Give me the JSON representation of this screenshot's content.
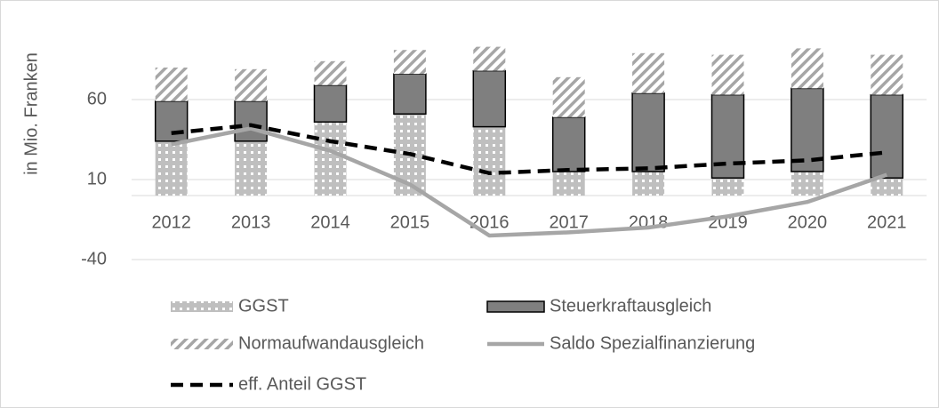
{
  "chart_data": {
    "type": "bar",
    "y_label": "in Mio. Franken",
    "categories": [
      "2012",
      "2013",
      "2014",
      "2015",
      "2016",
      "2017",
      "2018",
      "2019",
      "2020",
      "2021"
    ],
    "ylim": [
      -40,
      110
    ],
    "yticks": [
      -40,
      10,
      60
    ],
    "grid": true,
    "stacked": true,
    "legend": "bottom",
    "series": [
      {
        "name": "GGST",
        "type": "bar",
        "color": "#bfbfbf",
        "pattern": "dots",
        "values": [
          34,
          34,
          46,
          51,
          43,
          15,
          15,
          11,
          15,
          11
        ]
      },
      {
        "name": "Steuerkraftausgleich",
        "type": "bar",
        "color": "#7f7f7f",
        "pattern": "solid",
        "values": [
          25,
          25,
          23,
          25,
          35,
          34,
          49,
          52,
          52,
          52
        ]
      },
      {
        "name": "Normaufwandausgleich",
        "type": "bar",
        "color": "#a6a6a6",
        "pattern": "hatch",
        "values": [
          21,
          20,
          15,
          15,
          15,
          25,
          25,
          25,
          25,
          25
        ]
      },
      {
        "name": "Saldo Spezialfinanzierung",
        "type": "line",
        "color": "#a6a6a6",
        "dash": false,
        "values": [
          32,
          42,
          28,
          7,
          -25,
          -23,
          -20,
          -13,
          -4,
          13
        ]
      },
      {
        "name": "eff. Anteil GGST",
        "type": "line",
        "color": "#000000",
        "dash": true,
        "values": [
          39,
          44,
          34,
          26,
          14,
          16,
          17,
          20,
          22,
          27
        ]
      }
    ]
  }
}
